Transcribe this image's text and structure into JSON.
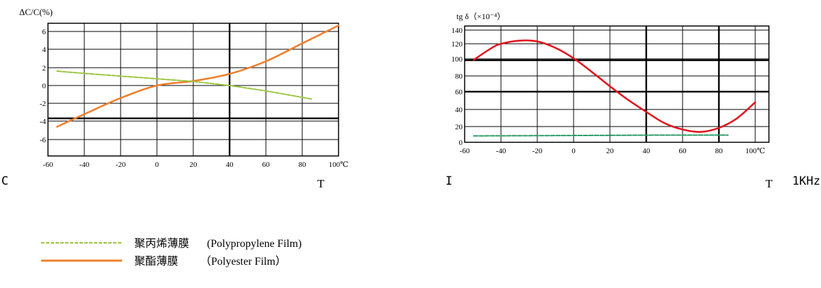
{
  "colors": {
    "polyester": "#ee7f2d",
    "polypropylene": "#9ac53c",
    "tan_red": "#e0141e",
    "tan_green": "#2a9a66"
  },
  "chart_data": [
    {
      "type": "line",
      "ylabel": "ΔC/C(%)",
      "xlabel": "T",
      "xlim": [
        -60,
        100
      ],
      "ylim": [
        -7,
        7
      ],
      "xticks": [
        "-60",
        "-40",
        "-20",
        "0",
        "20",
        "40",
        "60",
        "80",
        "100℃"
      ],
      "yticks": [
        "6",
        "4",
        "2",
        "0",
        "-2",
        "-4",
        "-6"
      ],
      "corner_label": "C",
      "grid": true,
      "series": [
        {
          "name": "polyester",
          "x": [
            -55,
            -40,
            -20,
            0,
            20,
            40,
            60,
            80,
            100
          ],
          "y": [
            -4.6,
            -3.2,
            -1.4,
            0.0,
            0.5,
            1.3,
            2.7,
            4.7,
            6.7
          ]
        },
        {
          "name": "polypropylene",
          "x": [
            -55,
            -40,
            -20,
            0,
            20,
            40,
            60,
            85
          ],
          "y": [
            1.6,
            1.35,
            1.05,
            0.75,
            0.45,
            0.0,
            -0.6,
            -1.5
          ],
          "dashed": true
        }
      ]
    },
    {
      "type": "line",
      "ylabel": "tg δ（×10⁻⁴）",
      "xlabel": "T",
      "xlim": [
        -60,
        100
      ],
      "ylim": [
        -10,
        145
      ],
      "xticks": [
        "-60",
        "-40",
        "-20",
        "0",
        "20",
        "40",
        "60",
        "80",
        "100℃"
      ],
      "yticks": [
        "140",
        "120",
        "100",
        "80",
        "60",
        "40",
        "20",
        "0"
      ],
      "corner_label": "I",
      "frequency": "1KHz",
      "grid": true,
      "series": [
        {
          "name": "polyester",
          "x": [
            -55,
            -45,
            -40,
            -30,
            -20,
            -10,
            0,
            10,
            20,
            30,
            40,
            50,
            60,
            70,
            80,
            90,
            100
          ],
          "y": [
            103,
            118,
            123,
            127,
            126,
            118,
            105,
            88,
            70,
            53,
            38,
            24,
            16,
            13,
            18,
            30,
            50
          ]
        },
        {
          "name": "polypropylene",
          "x": [
            -55,
            0,
            50,
            85
          ],
          "y": [
            8,
            8.5,
            9,
            9
          ],
          "dashed": true
        }
      ]
    }
  ],
  "legend": [
    {
      "key": "polypropylene",
      "cn": "聚丙烯薄膜",
      "en": "(Polypropylene Film)",
      "dashed": true
    },
    {
      "key": "polyester",
      "cn": "聚酯薄膜",
      "en": "（Polyester Film）",
      "dashed": false
    }
  ]
}
